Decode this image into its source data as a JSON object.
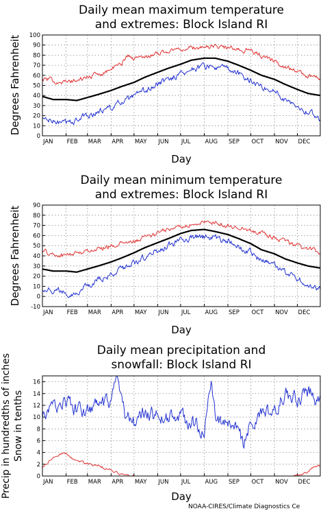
{
  "colors": {
    "mean": "#000000",
    "high_extreme": "#e03030",
    "low_extreme": "#2030d0",
    "precip": "#2030d0",
    "snow": "#e03030"
  },
  "credit": "NOAA-CIRES/Climate Diagnostics Ce",
  "chart_data": [
    {
      "type": "line",
      "title_line1": "Daily mean maximum temperature",
      "title_line2": "and extremes: Block Island RI",
      "xlabel": "Day",
      "ylabel": "Degrees Fahrenheit",
      "ylim": [
        0,
        100
      ],
      "yticks": [
        0,
        10,
        20,
        30,
        40,
        50,
        60,
        70,
        80,
        90,
        100
      ],
      "months": [
        "JAN",
        "FEB",
        "MAR",
        "APR",
        "MAY",
        "JUN",
        "JUL",
        "AUG",
        "SEP",
        "OCT",
        "NOV",
        "DEC"
      ],
      "grid": true,
      "series": [
        {
          "role": "mean",
          "x": [
            1,
            15,
            32,
            46,
            60,
            74,
            91,
            105,
            121,
            135,
            152,
            166,
            182,
            196,
            213,
            227,
            244,
            258,
            274,
            288,
            305,
            319,
            335,
            349,
            365
          ],
          "values": [
            39,
            36,
            36,
            35,
            38,
            41,
            45,
            49,
            53,
            58,
            63,
            67,
            71,
            75,
            77,
            77,
            74,
            70,
            65,
            60,
            56,
            51,
            46,
            42,
            40
          ]
        },
        {
          "role": "high_extreme",
          "x": [
            1,
            15,
            32,
            46,
            60,
            74,
            91,
            105,
            112,
            121,
            135,
            152,
            166,
            182,
            196,
            213,
            227,
            244,
            258,
            274,
            288,
            305,
            319,
            335,
            349,
            365
          ],
          "values": [
            56,
            55,
            53,
            55,
            58,
            61,
            66,
            72,
            80,
            76,
            79,
            82,
            84,
            86,
            87,
            88,
            89,
            87,
            86,
            84,
            79,
            74,
            69,
            64,
            59,
            57
          ]
        },
        {
          "role": "low_extreme",
          "x": [
            1,
            15,
            32,
            46,
            60,
            74,
            91,
            105,
            121,
            135,
            152,
            166,
            182,
            196,
            213,
            227,
            244,
            258,
            274,
            288,
            305,
            319,
            335,
            349,
            365
          ],
          "values": [
            17,
            14,
            12,
            16,
            20,
            24,
            28,
            33,
            38,
            44,
            51,
            56,
            62,
            66,
            69,
            68,
            66,
            61,
            55,
            49,
            44,
            37,
            30,
            24,
            17
          ]
        }
      ]
    },
    {
      "type": "line",
      "title_line1": "Daily mean minimum temperature",
      "title_line2": "and extremes: Block Island RI",
      "xlabel": "Day",
      "ylabel": "Degrees Fahrenheit",
      "ylim": [
        -10,
        90
      ],
      "yticks": [
        -10,
        0,
        10,
        20,
        30,
        40,
        50,
        60,
        70,
        80,
        90
      ],
      "months": [
        "JAN",
        "FEB",
        "MAR",
        "APR",
        "MAY",
        "JUN",
        "JUL",
        "AUG",
        "SEP",
        "OCT",
        "NOV",
        "DEC"
      ],
      "grid": true,
      "series": [
        {
          "role": "mean",
          "x": [
            1,
            15,
            32,
            46,
            60,
            74,
            91,
            105,
            121,
            135,
            152,
            166,
            182,
            196,
            213,
            227,
            244,
            258,
            274,
            288,
            305,
            319,
            335,
            349,
            365
          ],
          "values": [
            27,
            25,
            25,
            24,
            27,
            30,
            34,
            38,
            43,
            48,
            53,
            57,
            62,
            65,
            66,
            64,
            61,
            57,
            52,
            46,
            42,
            37,
            33,
            30,
            28
          ]
        },
        {
          "role": "high_extreme",
          "x": [
            1,
            15,
            32,
            46,
            60,
            74,
            91,
            105,
            121,
            135,
            152,
            166,
            182,
            196,
            213,
            227,
            244,
            258,
            274,
            288,
            305,
            319,
            335,
            349,
            365
          ],
          "values": [
            45,
            41,
            40,
            43,
            45,
            47,
            50,
            52,
            54,
            58,
            62,
            66,
            69,
            71,
            73,
            73,
            70,
            68,
            66,
            62,
            58,
            55,
            50,
            46,
            44
          ]
        },
        {
          "role": "low_extreme",
          "x": [
            1,
            15,
            32,
            46,
            60,
            74,
            91,
            105,
            121,
            135,
            152,
            166,
            182,
            196,
            213,
            227,
            244,
            258,
            274,
            288,
            305,
            319,
            335,
            349,
            365
          ],
          "values": [
            8,
            6,
            4,
            3,
            10,
            16,
            21,
            27,
            33,
            39,
            45,
            50,
            55,
            58,
            59,
            57,
            54,
            49,
            43,
            36,
            30,
            24,
            17,
            12,
            6
          ]
        }
      ]
    },
    {
      "type": "line",
      "title_line1": "Daily mean precipitation and",
      "title_line2": "snowfall: Block Island RI",
      "xlabel": "Day",
      "ylabel_line1": "Precip in hundredths of inches",
      "ylabel_line2": "Snow in tenths",
      "ylim": [
        0,
        17
      ],
      "yticks": [
        0,
        2,
        4,
        6,
        8,
        10,
        12,
        14,
        16
      ],
      "months": [
        "JAN",
        "FEB",
        "MAR",
        "APR",
        "MAY",
        "JUN",
        "JUL",
        "AUG",
        "SEP",
        "OCT",
        "NOV",
        "DEC"
      ],
      "grid": true,
      "series": [
        {
          "role": "precip",
          "x": [
            1,
            10,
            20,
            32,
            45,
            60,
            75,
            91,
            98,
            110,
            121,
            135,
            152,
            166,
            182,
            196,
            213,
            222,
            230,
            244,
            258,
            265,
            274,
            288,
            305,
            319,
            335,
            349,
            360,
            365
          ],
          "values": [
            10,
            11,
            12,
            13,
            11,
            11,
            12,
            12,
            16,
            10,
            9,
            11,
            10,
            10,
            10,
            9,
            8,
            15,
            9,
            9,
            8,
            5,
            9,
            10,
            11,
            14,
            13,
            14,
            13,
            14
          ]
        },
        {
          "role": "snow",
          "x": [
            1,
            10,
            20,
            32,
            40,
            50,
            60,
            70,
            80,
            91,
            100,
            110,
            120,
            200,
            330,
            340,
            350,
            358,
            365
          ],
          "values": [
            1.5,
            2.5,
            3.5,
            4.0,
            3.0,
            2.5,
            2.0,
            1.8,
            1.5,
            1.0,
            0.5,
            0.1,
            0,
            0,
            0,
            0.2,
            0.8,
            1.6,
            1.7
          ]
        }
      ]
    }
  ]
}
